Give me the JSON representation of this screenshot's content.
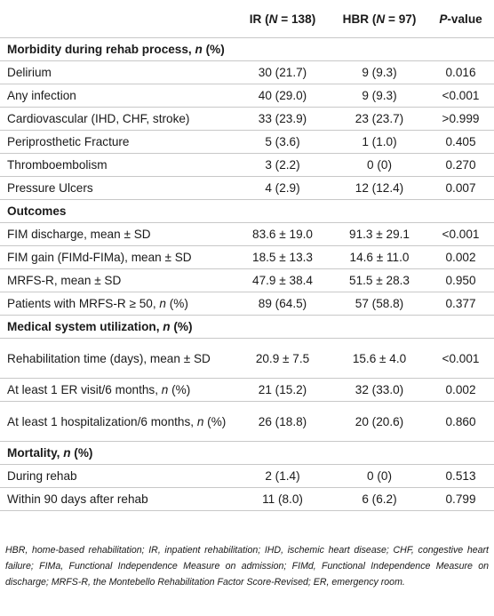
{
  "header": {
    "col_label": "",
    "ir": {
      "label": "IR",
      "n_label": "N",
      "n_value": "= 138"
    },
    "hbr": {
      "label": "HBR",
      "n_label": "N",
      "n_value": "= 97"
    },
    "pvalue": {
      "p": "P",
      "rest": "-value"
    }
  },
  "sections": [
    {
      "title": "Morbidity during rehab process, ",
      "title_italic": "n",
      "title_suffix": " (%)",
      "rows": [
        {
          "label": "Delirium",
          "label_italic": "",
          "label_suffix": "",
          "ir": "30 (21.7)",
          "hbr": "9 (9.3)",
          "p": "0.016"
        },
        {
          "label": "Any infection",
          "label_italic": "",
          "label_suffix": "",
          "ir": "40 (29.0)",
          "hbr": "9 (9.3)",
          "p": "<0.001"
        },
        {
          "label": "Cardiovascular (IHD, CHF, stroke)",
          "label_italic": "",
          "label_suffix": "",
          "ir": "33 (23.9)",
          "hbr": "23 (23.7)",
          "p": ">0.999"
        },
        {
          "label": "Periprosthetic Fracture",
          "label_italic": "",
          "label_suffix": "",
          "ir": "5 (3.6)",
          "hbr": "1 (1.0)",
          "p": "0.405"
        },
        {
          "label": "Thromboembolism",
          "label_italic": "",
          "label_suffix": "",
          "ir": "3 (2.2)",
          "hbr": "0 (0)",
          "p": "0.270"
        },
        {
          "label": "Pressure Ulcers",
          "label_italic": "",
          "label_suffix": "",
          "ir": "4 (2.9)",
          "hbr": "12 (12.4)",
          "p": "0.007"
        }
      ]
    },
    {
      "title": "Outcomes",
      "title_italic": "",
      "title_suffix": "",
      "rows": [
        {
          "label": "FIM discharge, mean ± SD",
          "label_italic": "",
          "label_suffix": "",
          "ir": "83.6 ± 19.0",
          "hbr": "91.3 ± 29.1",
          "p": "<0.001"
        },
        {
          "label": "FIM gain (FIMd-FIMa), mean ± SD",
          "label_italic": "",
          "label_suffix": "",
          "ir": "18.5 ± 13.3",
          "hbr": "14.6 ± 11.0",
          "p": "0.002"
        },
        {
          "label": "MRFS-R, mean ± SD",
          "label_italic": "",
          "label_suffix": "",
          "ir": "47.9 ± 38.4",
          "hbr": "51.5 ± 28.3",
          "p": "0.950"
        },
        {
          "label": "Patients with MRFS-R ≥ 50, ",
          "label_italic": "n",
          "label_suffix": " (%)",
          "ir": "89 (64.5)",
          "hbr": "57 (58.8)",
          "p": "0.377"
        }
      ]
    },
    {
      "title": "Medical system utilization, ",
      "title_italic": "n",
      "title_suffix": " (%)",
      "rows": [
        {
          "label": "Rehabilitation time (days), mean ± SD",
          "label_italic": "",
          "label_suffix": "",
          "ir": "20.9 ± 7.5",
          "hbr": "15.6 ± 4.0",
          "p": "<0.001",
          "tall": true
        },
        {
          "label": "At least 1 ER visit/6 months, ",
          "label_italic": "n",
          "label_suffix": " (%)",
          "ir": "21 (15.2)",
          "hbr": "32 (33.0)",
          "p": "0.002"
        },
        {
          "label": "At least 1 hospitalization/6 months, ",
          "label_italic": "n",
          "label_suffix": " (%)",
          "ir": "26 (18.8)",
          "hbr": "20 (20.6)",
          "p": "0.860",
          "tall": true
        }
      ]
    },
    {
      "title": "Mortality, ",
      "title_italic": "n",
      "title_suffix": " (%)",
      "rows": [
        {
          "label": "During rehab",
          "label_italic": "",
          "label_suffix": "",
          "ir": "2 (1.4)",
          "hbr": "0 (0)",
          "p": "0.513"
        },
        {
          "label": "Within 90 days after rehab",
          "label_italic": "",
          "label_suffix": "",
          "ir": "11 (8.0)",
          "hbr": "6 (6.2)",
          "p": "0.799"
        }
      ]
    }
  ],
  "footnote": "HBR, home-based rehabilitation; IR, inpatient rehabilitation; IHD, ischemic heart disease; CHF, congestive heart failure; FIMa, Functional Independence Measure on admission; FIMd, Functional Independence Measure on discharge; MRFS-R, the Montebello Rehabilitation Factor Score-Revised; ER, emergency room."
}
